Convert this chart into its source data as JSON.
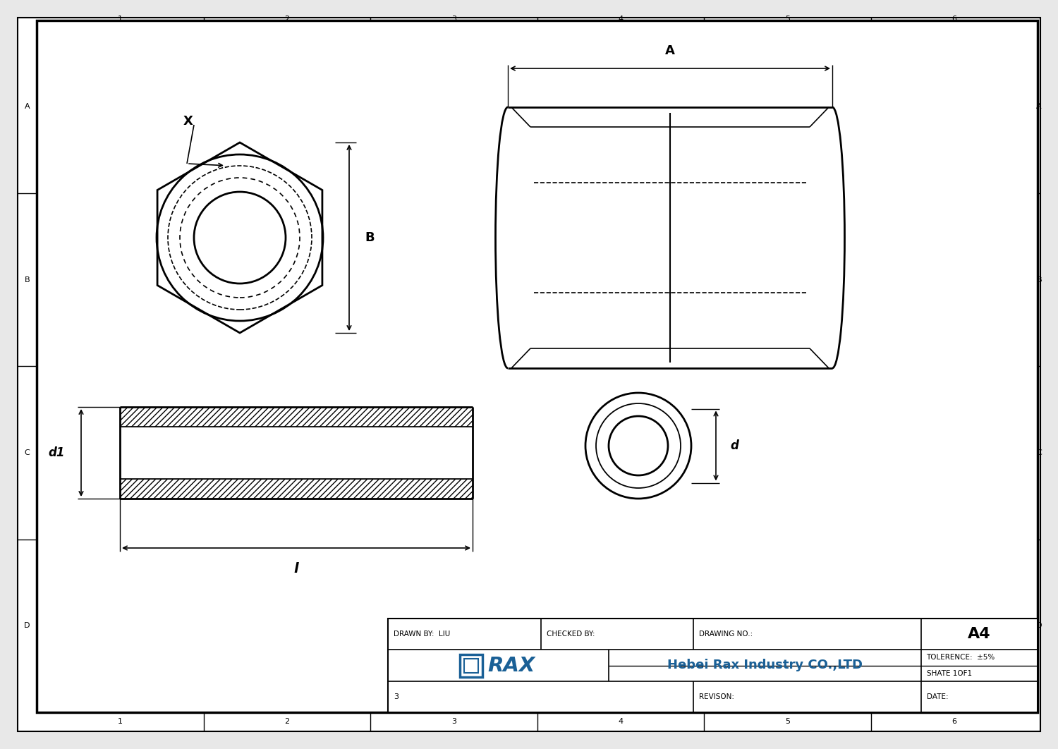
{
  "bg_color": "#e8e8e8",
  "drawing_bg": "#ffffff",
  "line_color": "#000000",
  "blue_color": "#1a6096",
  "drawn_by": "DRAWN BY:  LIU",
  "checked_by": "CHECKED BY:",
  "drawing_no": "DRAWING NO.:",
  "sheet_size": "A4",
  "tolerence": "TOLERENCE:  ±5%",
  "company": "Hebei Rax Industry CO.,LTD",
  "shate": "SHATE 1OF1",
  "revison": "REVISON:",
  "date_label": "DATE:",
  "grid_cols": [
    "1",
    "2",
    "3",
    "4",
    "5",
    "6"
  ],
  "grid_rows": [
    "A",
    "B",
    "C",
    "D"
  ]
}
